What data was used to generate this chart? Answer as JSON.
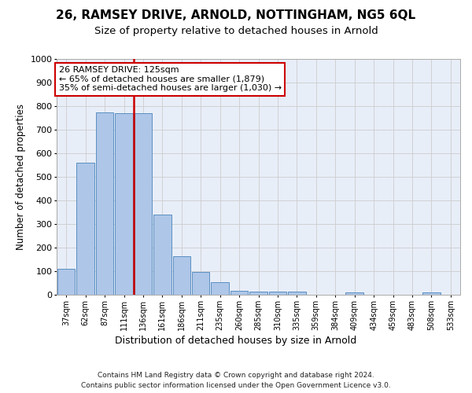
{
  "title": "26, RAMSEY DRIVE, ARNOLD, NOTTINGHAM, NG5 6QL",
  "subtitle": "Size of property relative to detached houses in Arnold",
  "xlabel": "Distribution of detached houses by size in Arnold",
  "ylabel": "Number of detached properties",
  "footer_line1": "Contains HM Land Registry data © Crown copyright and database right 2024.",
  "footer_line2": "Contains public sector information licensed under the Open Government Licence v3.0.",
  "annotation_line1": "26 RAMSEY DRIVE: 125sqm",
  "annotation_line2": "← 65% of detached houses are smaller (1,879)",
  "annotation_line3": "35% of semi-detached houses are larger (1,030) →",
  "bins": [
    "37sqm",
    "62sqm",
    "87sqm",
    "111sqm",
    "136sqm",
    "161sqm",
    "186sqm",
    "211sqm",
    "235sqm",
    "260sqm",
    "285sqm",
    "310sqm",
    "335sqm",
    "359sqm",
    "384sqm",
    "409sqm",
    "434sqm",
    "459sqm",
    "483sqm",
    "508sqm",
    "533sqm"
  ],
  "values": [
    110,
    560,
    775,
    770,
    770,
    340,
    165,
    97,
    52,
    18,
    14,
    14,
    14,
    0,
    0,
    10,
    0,
    0,
    0,
    10,
    0
  ],
  "bar_color": "#aec6e8",
  "bar_edge_color": "#5a8fc2",
  "vline_color": "#cc0000",
  "ylim": [
    0,
    1000
  ],
  "yticks": [
    0,
    100,
    200,
    300,
    400,
    500,
    600,
    700,
    800,
    900,
    1000
  ],
  "grid_color": "#cccccc",
  "bg_color": "#e8eef8",
  "title_fontsize": 11,
  "subtitle_fontsize": 9.5,
  "annotation_fontsize": 8,
  "ylabel_fontsize": 8.5,
  "xlabel_fontsize": 9,
  "footer_fontsize": 6.5
}
